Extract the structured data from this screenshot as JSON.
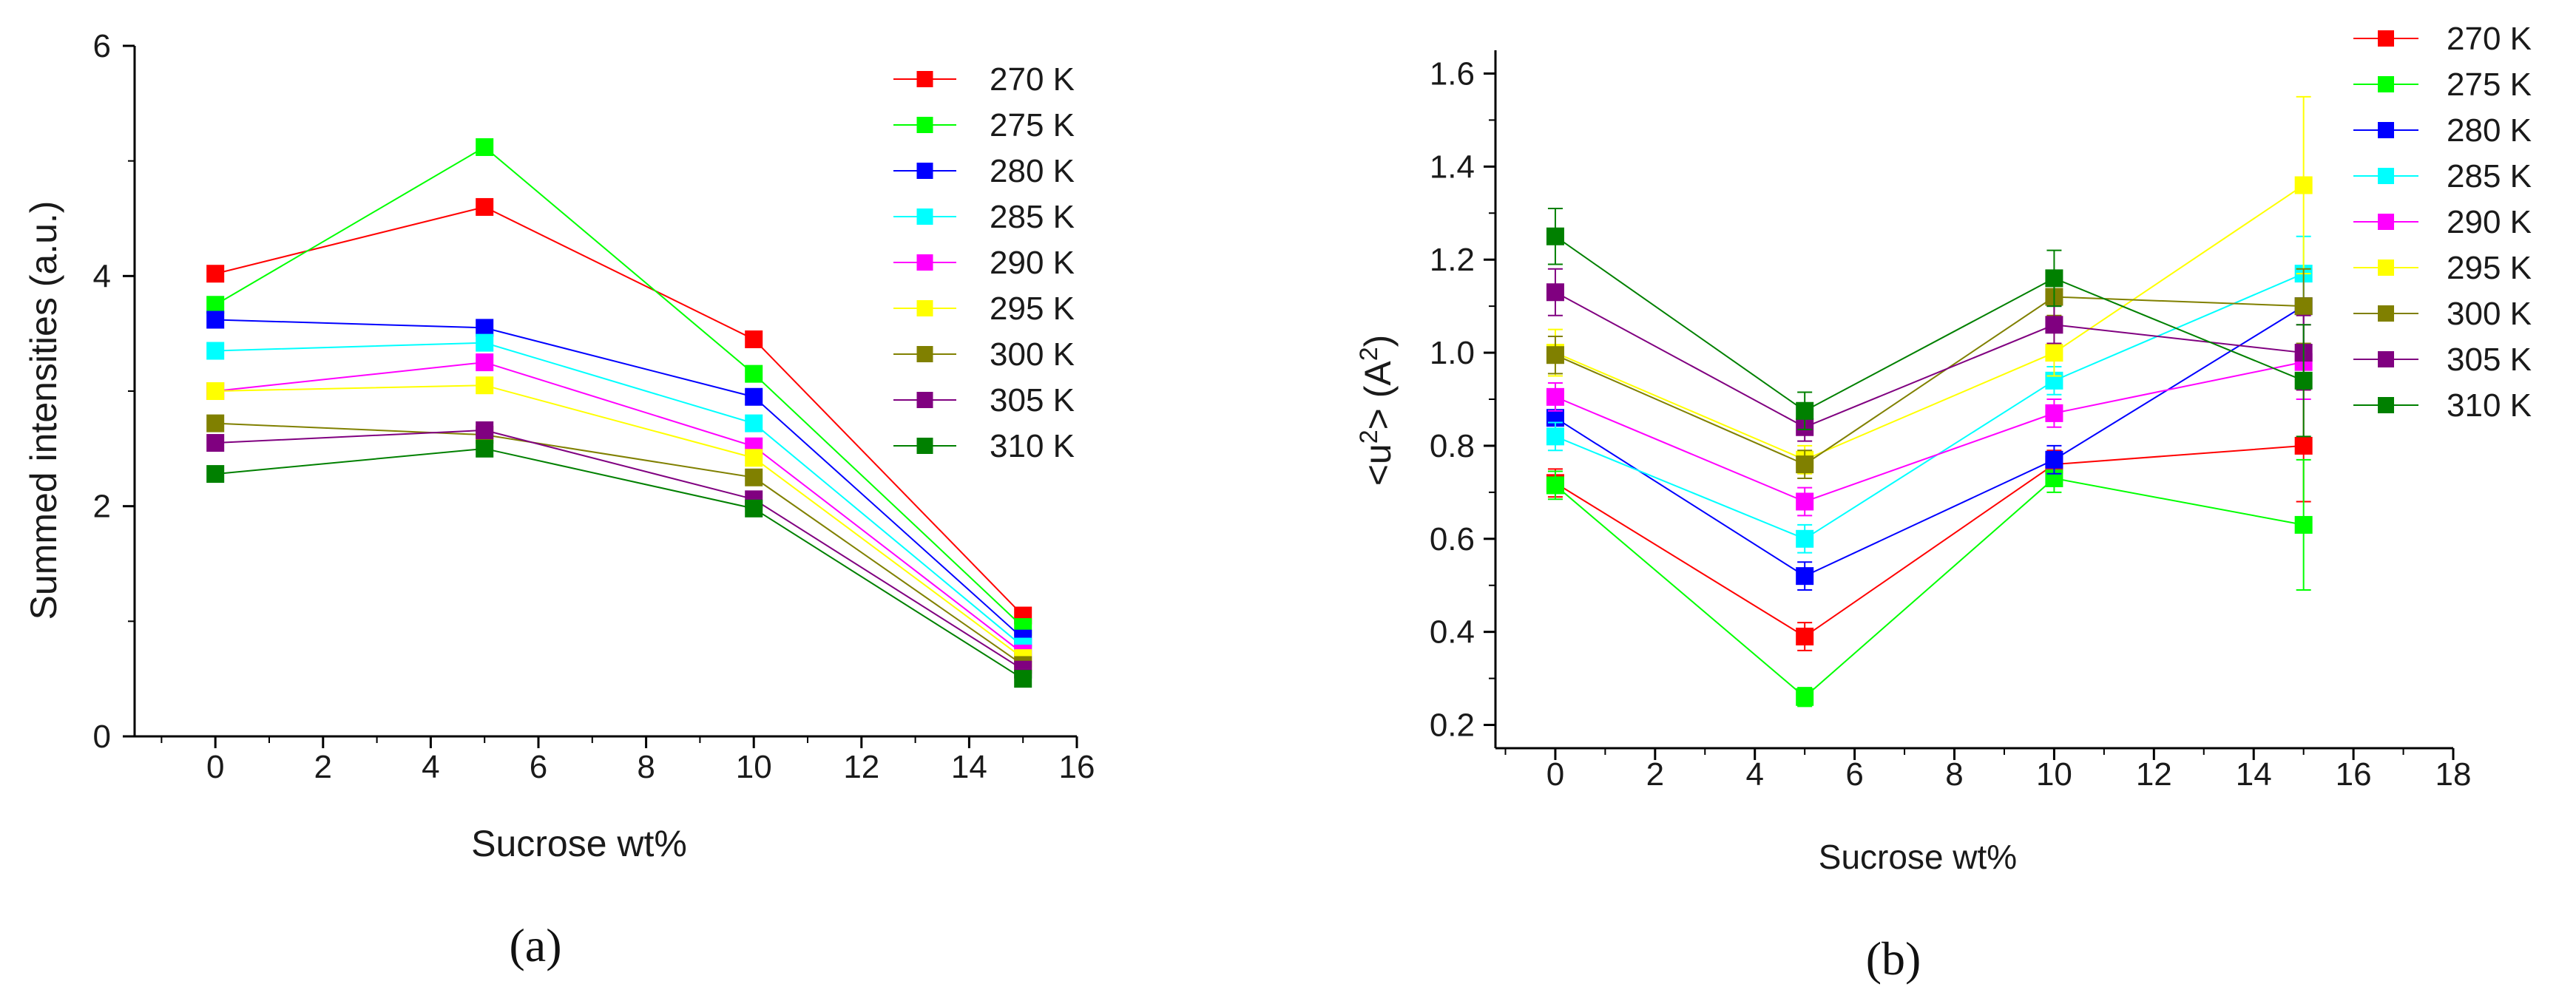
{
  "panels": {
    "a": "(a)",
    "b": "(b)"
  },
  "chart_data": [
    {
      "type": "line",
      "id": "a",
      "title": "",
      "xlabel": "Sucrose wt%",
      "ylabel": "Summed intensities (a.u.)",
      "xlim": [
        -1.5,
        16
      ],
      "ylim": [
        0,
        6
      ],
      "xticks": [
        0,
        2,
        4,
        6,
        8,
        10,
        12,
        14,
        16
      ],
      "yticks": [
        0,
        2,
        4,
        6
      ],
      "grid": false,
      "legend_position": "top-right",
      "x": [
        0,
        5,
        10,
        15
      ],
      "series": [
        {
          "name": "270 K",
          "color": "#ff0000",
          "values": [
            4.02,
            4.6,
            3.45,
            1.05
          ]
        },
        {
          "name": "275 K",
          "color": "#00ff00",
          "values": [
            3.75,
            5.12,
            3.15,
            0.95
          ]
        },
        {
          "name": "280 K",
          "color": "#0000ff",
          "values": [
            3.62,
            3.55,
            2.95,
            0.85
          ]
        },
        {
          "name": "285 K",
          "color": "#00ffff",
          "values": [
            3.35,
            3.42,
            2.72,
            0.78
          ]
        },
        {
          "name": "290 K",
          "color": "#ff00ff",
          "values": [
            3.0,
            3.25,
            2.52,
            0.72
          ]
        },
        {
          "name": "295 K",
          "color": "#ffff00",
          "values": [
            3.0,
            3.05,
            2.42,
            0.68
          ]
        },
        {
          "name": "300 K",
          "color": "#808000",
          "values": [
            2.72,
            2.62,
            2.25,
            0.62
          ]
        },
        {
          "name": "305 K",
          "color": "#800080",
          "values": [
            2.55,
            2.66,
            2.06,
            0.58
          ]
        },
        {
          "name": "310 K",
          "color": "#008000",
          "values": [
            2.28,
            2.5,
            1.98,
            0.5
          ]
        }
      ]
    },
    {
      "type": "line",
      "id": "b",
      "title": "",
      "xlabel": "Sucrose wt%",
      "ylabel": "<u²> (A²)",
      "xlim": [
        -1.2,
        18
      ],
      "ylim": [
        0.15,
        1.65
      ],
      "xticks": [
        0,
        2,
        4,
        6,
        8,
        10,
        12,
        14,
        16,
        18
      ],
      "yticks": [
        0.2,
        0.4,
        0.6,
        0.8,
        1.0,
        1.2,
        1.4,
        1.6
      ],
      "ytick_labels": [
        "0.2",
        "0.4",
        "0.6",
        "0.8",
        "1.0",
        "1.2",
        "1.4",
        "1.6"
      ],
      "grid": false,
      "legend_position": "top-right",
      "error_bars": true,
      "x": [
        0,
        5,
        10,
        15
      ],
      "series": [
        {
          "name": "270 K",
          "color": "#ff0000",
          "values": [
            0.72,
            0.39,
            0.76,
            0.8
          ],
          "errors": [
            0.03,
            0.03,
            0.03,
            0.12
          ]
        },
        {
          "name": "275 K",
          "color": "#00ff00",
          "values": [
            0.715,
            0.26,
            0.73,
            0.63
          ],
          "errors": [
            0.03,
            0.02,
            0.03,
            0.14
          ]
        },
        {
          "name": "280 K",
          "color": "#0000ff",
          "values": [
            0.86,
            0.52,
            0.77,
            1.1
          ],
          "errors": [
            0.03,
            0.03,
            0.03,
            0.08
          ]
        },
        {
          "name": "285 K",
          "color": "#00ffff",
          "values": [
            0.82,
            0.6,
            0.94,
            1.17
          ],
          "errors": [
            0.03,
            0.03,
            0.03,
            0.08
          ]
        },
        {
          "name": "290 K",
          "color": "#ff00ff",
          "values": [
            0.905,
            0.68,
            0.87,
            0.98
          ],
          "errors": [
            0.03,
            0.03,
            0.03,
            0.08
          ]
        },
        {
          "name": "295 K",
          "color": "#ffff00",
          "values": [
            1.0,
            0.77,
            1.0,
            1.36
          ],
          "errors": [
            0.05,
            0.03,
            0.05,
            0.19
          ]
        },
        {
          "name": "300 K",
          "color": "#808000",
          "values": [
            0.995,
            0.76,
            1.12,
            1.1
          ],
          "errors": [
            0.04,
            0.03,
            0.04,
            0.08
          ]
        },
        {
          "name": "305 K",
          "color": "#800080",
          "values": [
            1.13,
            0.84,
            1.06,
            1.0
          ],
          "errors": [
            0.05,
            0.03,
            0.04,
            0.08
          ]
        },
        {
          "name": "310 K",
          "color": "#008000",
          "values": [
            1.25,
            0.875,
            1.16,
            0.94
          ],
          "errors": [
            0.06,
            0.04,
            0.06,
            0.12
          ]
        }
      ]
    }
  ]
}
